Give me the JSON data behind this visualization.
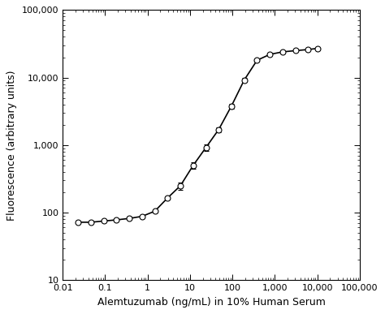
{
  "x_data": [
    0.023,
    0.046,
    0.092,
    0.185,
    0.37,
    0.74,
    1.48,
    2.96,
    5.93,
    11.86,
    23.7,
    47.4,
    94.8,
    189.6,
    379.3,
    758.5,
    1517,
    3034,
    6069,
    10000
  ],
  "y_data": [
    72,
    72,
    75,
    78,
    82,
    88,
    105,
    165,
    250,
    500,
    920,
    1700,
    3800,
    9200,
    18000,
    22000,
    24000,
    25000,
    26000,
    27000
  ],
  "y_err": [
    3,
    3,
    3,
    4,
    4,
    5,
    6,
    10,
    30,
    60,
    100,
    150,
    300,
    600,
    800,
    700,
    600,
    500,
    400,
    400
  ],
  "xlabel": "Alemtuzumab (ng/mL) in 10% Human Serum",
  "ylabel": "Fluorescence (arbitrary units)",
  "xlim": [
    0.01,
    100000
  ],
  "ylim": [
    10,
    100000
  ],
  "line_color": "#000000",
  "marker_color": "#ffffff",
  "marker_edge_color": "#000000",
  "error_color": "#000000",
  "background_color": "#ffffff",
  "axis_label_color": "#000000",
  "tick_label_color": "#000000",
  "tick_color": "#000000",
  "font_size_axis": 9,
  "font_size_tick": 8,
  "marker_size": 5,
  "line_width": 1.2,
  "x_ticks": [
    0.01,
    0.1,
    1,
    10,
    100,
    1000,
    10000,
    100000
  ],
  "x_tick_labels": [
    "0.01",
    "0.1",
    "1",
    "10",
    "100",
    "1,000",
    "10,000",
    "100,000"
  ],
  "y_ticks": [
    10,
    100,
    1000,
    10000,
    100000
  ],
  "y_tick_labels": [
    "10",
    "100",
    "1,000",
    "10,000",
    "100,000"
  ]
}
